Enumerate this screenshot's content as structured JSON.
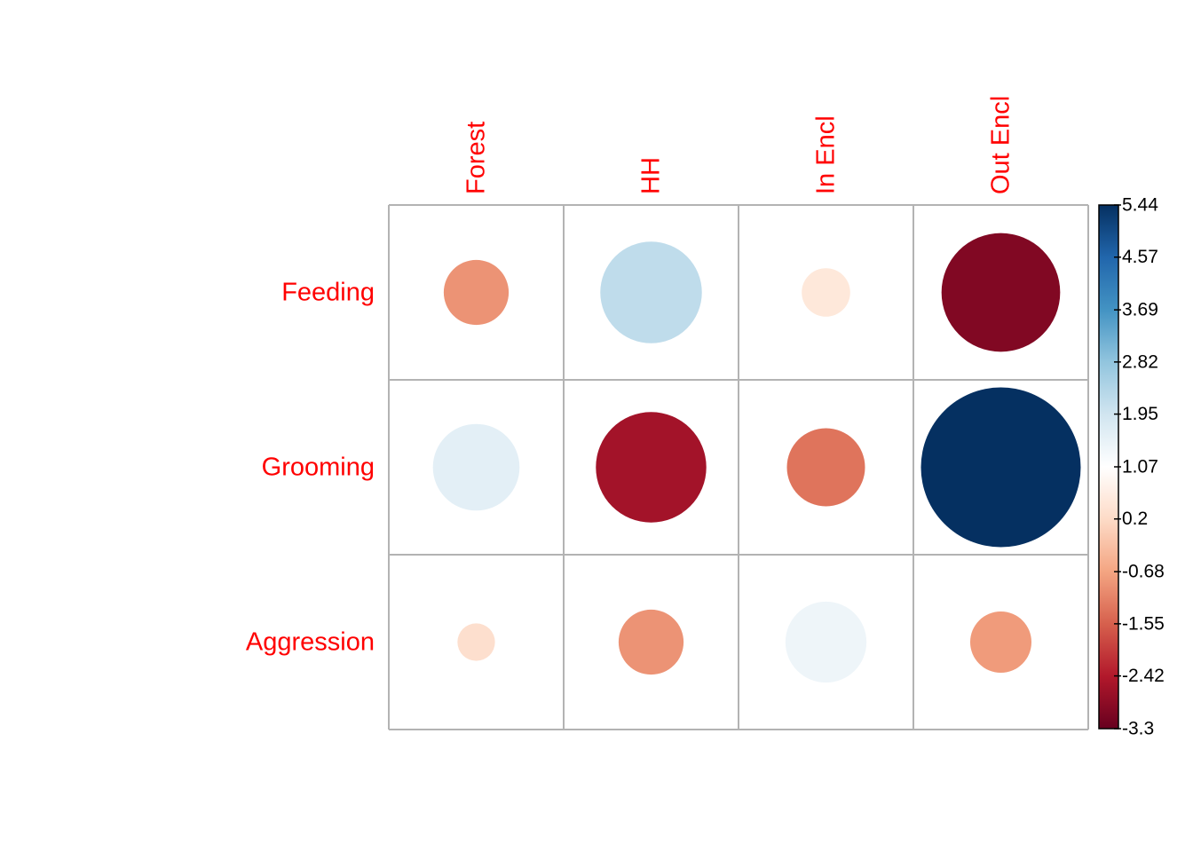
{
  "chart_data": {
    "type": "heatmap",
    "subtype": "corrplot-circle",
    "title": "",
    "rows": [
      "Feeding",
      "Grooming",
      "Aggression"
    ],
    "columns": [
      "Forest",
      "HH",
      "In Encl",
      "Out Encl"
    ],
    "values": [
      [
        -0.9,
        2.2,
        0.5,
        -3.0
      ],
      [
        1.6,
        -2.6,
        -1.3,
        5.44
      ],
      [
        0.3,
        -0.9,
        1.4,
        -0.8
      ]
    ],
    "color_scale": {
      "min": -3.3,
      "max": 5.44,
      "colors": [
        "#67001F",
        "#B2182B",
        "#D6604D",
        "#F4A582",
        "#FDDBC7",
        "#FFFFFF",
        "#D1E5F0",
        "#92C5DE",
        "#4393C3",
        "#2166AC",
        "#053061"
      ]
    },
    "colorbar": {
      "ticks": [
        {
          "label": "5.44",
          "value": 5.44
        },
        {
          "label": "4.57",
          "value": 4.57
        },
        {
          "label": "3.69",
          "value": 3.69
        },
        {
          "label": "2.82",
          "value": 2.82
        },
        {
          "label": "1.95",
          "value": 1.95
        },
        {
          "label": "1.07",
          "value": 1.07
        },
        {
          "label": "0.2",
          "value": 0.2
        },
        {
          "label": "-0.68",
          "value": -0.68
        },
        {
          "label": "-1.55",
          "value": -1.55
        },
        {
          "label": "-2.42",
          "value": -2.42
        },
        {
          "label": "-3.3",
          "value": -3.3
        }
      ],
      "placement": "right"
    },
    "label_color": "#FF0000",
    "grid_color": "#B3B3B3"
  }
}
